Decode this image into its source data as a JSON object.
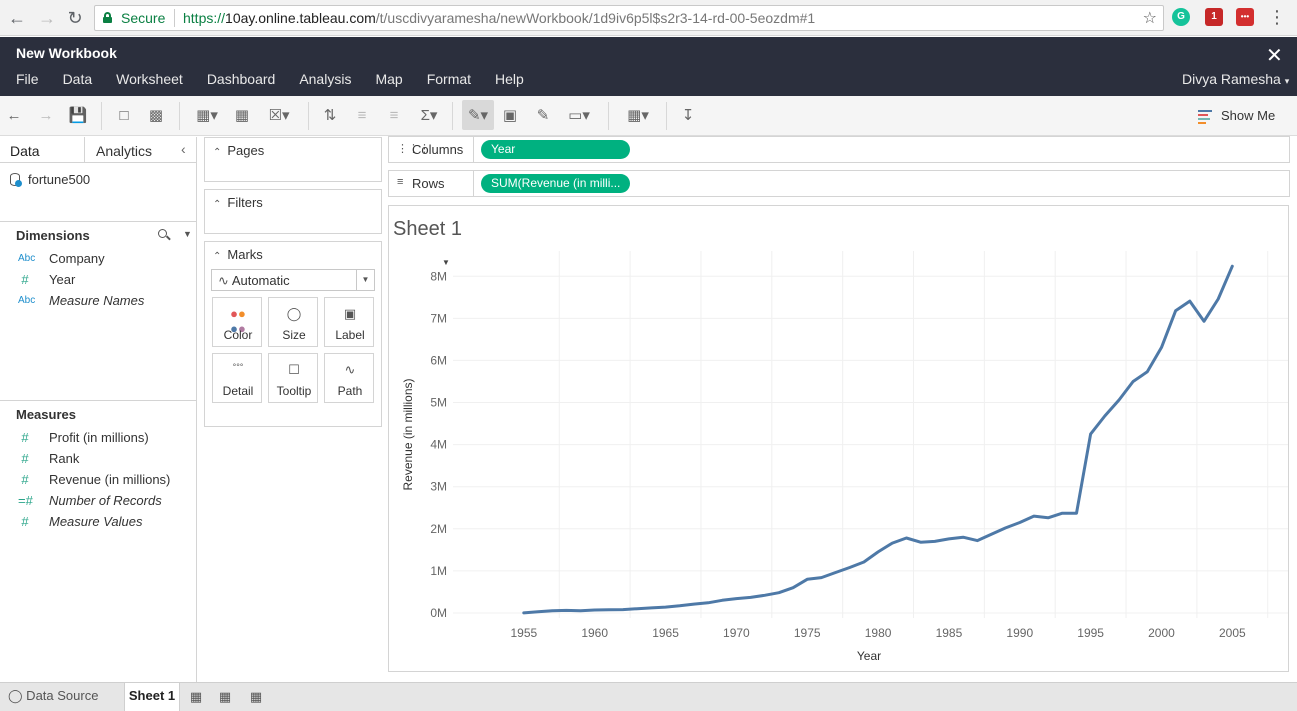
{
  "browser": {
    "secure_label": "Secure",
    "url_scheme": "https://",
    "url_host": "10ay.online.tableau.com",
    "url_path": "/t/uscdivyaramesha/newWorkbook/1d9iv6p5l$s2r3-14-rd-00-5eozdm#1",
    "ext_badge": "1"
  },
  "app": {
    "title": "New Workbook",
    "menu": [
      "File",
      "Data",
      "Worksheet",
      "Dashboard",
      "Analysis",
      "Map",
      "Format",
      "Help"
    ],
    "user": "Divya Ramesha"
  },
  "toolbar": {
    "show_me": "Show Me"
  },
  "data_pane": {
    "tabs": {
      "data": "Data",
      "analytics": "Analytics"
    },
    "datasource": "fortune500",
    "dimensions_title": "Dimensions",
    "dimensions": [
      {
        "type": "Abc",
        "name": "Company",
        "italic": false
      },
      {
        "type": "#",
        "name": "Year",
        "italic": false
      },
      {
        "type": "Abc",
        "name": "Measure Names",
        "italic": true
      }
    ],
    "measures_title": "Measures",
    "measures": [
      {
        "type": "#",
        "name": "Profit (in millions)",
        "italic": false
      },
      {
        "type": "#",
        "name": "Rank",
        "italic": false
      },
      {
        "type": "#",
        "name": "Revenue (in millions)",
        "italic": false
      },
      {
        "type": "=#",
        "name": "Number of Records",
        "italic": true
      },
      {
        "type": "#",
        "name": "Measure Values",
        "italic": true
      }
    ]
  },
  "cards": {
    "pages": "Pages",
    "filters": "Filters",
    "marks": "Marks",
    "mark_type": "Automatic",
    "buttons": [
      "Color",
      "Size",
      "Label",
      "Detail",
      "Tooltip",
      "Path"
    ]
  },
  "shelves": {
    "columns_label": "Columns",
    "columns_pill": "Year",
    "rows_label": "Rows",
    "rows_pill": "SUM(Revenue (in milli..."
  },
  "sheet": {
    "title": "Sheet 1"
  },
  "chart_data": {
    "type": "line",
    "xlabel": "Year",
    "ylabel": "Revenue (in millions)",
    "x_ticks": [
      1955,
      1960,
      1965,
      1970,
      1975,
      1980,
      1985,
      1990,
      1995,
      2000,
      2005
    ],
    "y_ticks": [
      "0M",
      "1M",
      "2M",
      "3M",
      "4M",
      "5M",
      "6M",
      "7M",
      "8M"
    ],
    "xlim": [
      1955,
      2005
    ],
    "ylim": [
      0,
      8000000
    ],
    "grid": true,
    "series": [
      {
        "color": "#4e79a7",
        "x": [
          1955,
          1956,
          1957,
          1958,
          1959,
          1960,
          1961,
          1962,
          1963,
          1964,
          1965,
          1966,
          1967,
          1968,
          1969,
          1970,
          1971,
          1972,
          1973,
          1974,
          1975,
          1976,
          1977,
          1978,
          1979,
          1980,
          1981,
          1982,
          1983,
          1984,
          1985,
          1986,
          1987,
          1988,
          1989,
          1990,
          1991,
          1992,
          1993,
          1994,
          1995,
          1996,
          1997,
          1998,
          1999,
          2000,
          2001,
          2002,
          2003,
          2004,
          2005
        ],
        "values": [
          0,
          30000,
          50000,
          60000,
          50000,
          70000,
          75000,
          80000,
          100000,
          120000,
          140000,
          170000,
          210000,
          240000,
          300000,
          340000,
          370000,
          420000,
          480000,
          600000,
          800000,
          840000,
          960000,
          1080000,
          1210000,
          1450000,
          1660000,
          1780000,
          1680000,
          1700000,
          1760000,
          1800000,
          1720000,
          1870000,
          2020000,
          2150000,
          2300000,
          2260000,
          2370000,
          2370000,
          4250000,
          4680000,
          5060000,
          5500000,
          5730000,
          6310000,
          7180000,
          7410000,
          6930000,
          7460000,
          8240000
        ]
      }
    ]
  }
}
